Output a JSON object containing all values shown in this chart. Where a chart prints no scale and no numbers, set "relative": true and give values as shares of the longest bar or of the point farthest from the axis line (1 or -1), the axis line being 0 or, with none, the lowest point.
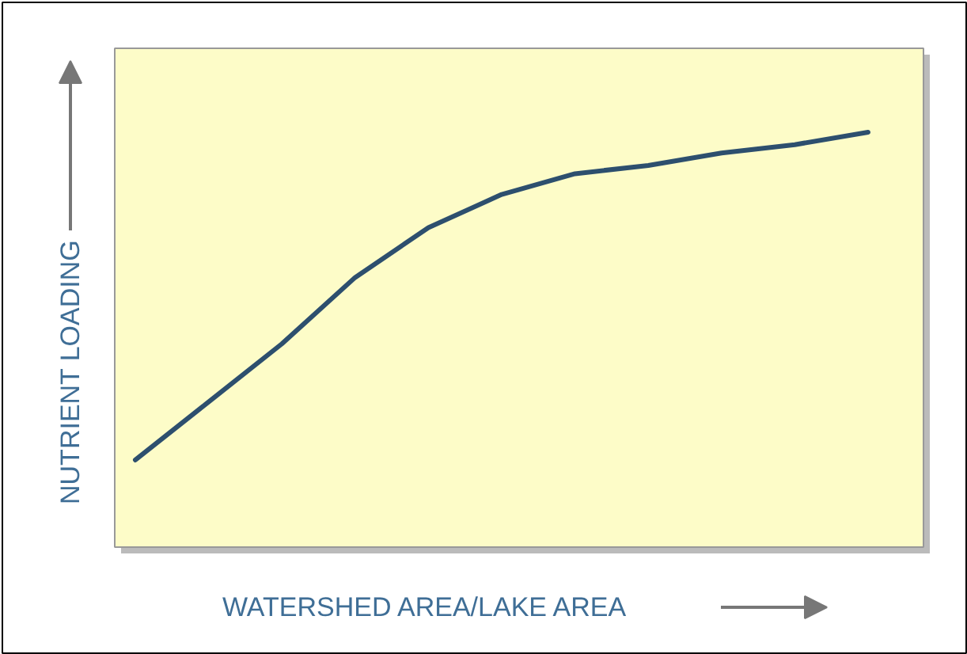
{
  "chart_data": {
    "type": "line",
    "relative": true,
    "xlabel": "WATERSHED AREA/LAKE AREA",
    "ylabel": "NUTRIENT LOADING",
    "categories": [
      null,
      null,
      null,
      null,
      null,
      null,
      null,
      null,
      null,
      null,
      null
    ],
    "values": [
      0.21,
      0.35,
      0.49,
      0.65,
      0.77,
      0.85,
      0.9,
      0.92,
      0.95,
      0.97,
      1.0
    ],
    "color": "#2d4f6e",
    "grid": false
  }
}
